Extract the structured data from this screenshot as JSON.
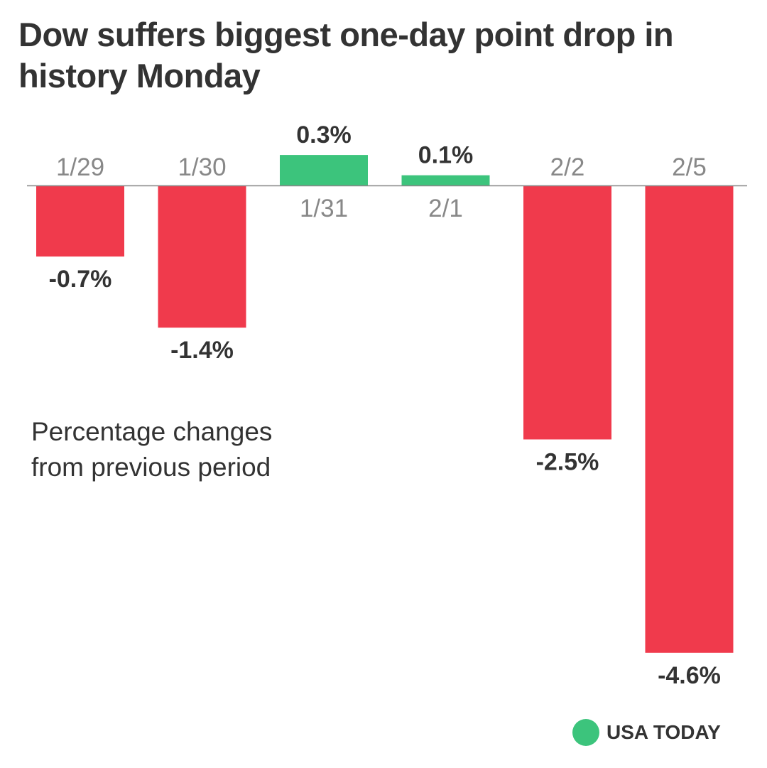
{
  "title": "Dow suffers biggest one-day point drop in history Monday",
  "subtitle": "Percentage changes from previous period",
  "brand": {
    "name": "USA TODAY",
    "dot_color": "#3cc47c"
  },
  "colors": {
    "negative": "#f03a4c",
    "positive": "#3cc47c",
    "axis": "#888888",
    "category_text": "#888888",
    "value_text": "#333333"
  },
  "chart_data": {
    "type": "bar",
    "categories": [
      "1/29",
      "1/30",
      "1/31",
      "2/1",
      "2/2",
      "2/5"
    ],
    "values": [
      -0.7,
      -1.4,
      0.3,
      0.1,
      -2.5,
      -4.6
    ],
    "value_labels": [
      "-0.7%",
      "-1.4%",
      "0.3%",
      "0.1%",
      "-2.5%",
      "-4.6%"
    ],
    "title": "Dow suffers biggest one-day point drop in history Monday",
    "ylabel": "",
    "xlabel": "",
    "ylim": [
      -4.6,
      0.3
    ]
  }
}
